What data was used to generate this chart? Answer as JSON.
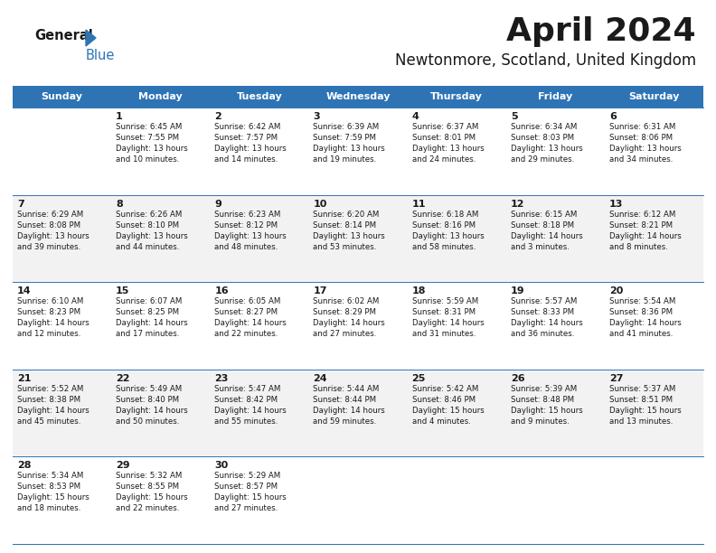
{
  "title": "April 2024",
  "subtitle": "Newtonmore, Scotland, United Kingdom",
  "header_color": "#2E74B5",
  "header_text_color": "#FFFFFF",
  "border_color": "#2E74B5",
  "text_color": "#1a1a1a",
  "days_of_week": [
    "Sunday",
    "Monday",
    "Tuesday",
    "Wednesday",
    "Thursday",
    "Friday",
    "Saturday"
  ],
  "logo_general_color": "#1a1a1a",
  "logo_blue_color": "#2E74B5",
  "calendar_data": [
    [
      {
        "day": "",
        "info": ""
      },
      {
        "day": "1",
        "info": "Sunrise: 6:45 AM\nSunset: 7:55 PM\nDaylight: 13 hours\nand 10 minutes."
      },
      {
        "day": "2",
        "info": "Sunrise: 6:42 AM\nSunset: 7:57 PM\nDaylight: 13 hours\nand 14 minutes."
      },
      {
        "day": "3",
        "info": "Sunrise: 6:39 AM\nSunset: 7:59 PM\nDaylight: 13 hours\nand 19 minutes."
      },
      {
        "day": "4",
        "info": "Sunrise: 6:37 AM\nSunset: 8:01 PM\nDaylight: 13 hours\nand 24 minutes."
      },
      {
        "day": "5",
        "info": "Sunrise: 6:34 AM\nSunset: 8:03 PM\nDaylight: 13 hours\nand 29 minutes."
      },
      {
        "day": "6",
        "info": "Sunrise: 6:31 AM\nSunset: 8:06 PM\nDaylight: 13 hours\nand 34 minutes."
      }
    ],
    [
      {
        "day": "7",
        "info": "Sunrise: 6:29 AM\nSunset: 8:08 PM\nDaylight: 13 hours\nand 39 minutes."
      },
      {
        "day": "8",
        "info": "Sunrise: 6:26 AM\nSunset: 8:10 PM\nDaylight: 13 hours\nand 44 minutes."
      },
      {
        "day": "9",
        "info": "Sunrise: 6:23 AM\nSunset: 8:12 PM\nDaylight: 13 hours\nand 48 minutes."
      },
      {
        "day": "10",
        "info": "Sunrise: 6:20 AM\nSunset: 8:14 PM\nDaylight: 13 hours\nand 53 minutes."
      },
      {
        "day": "11",
        "info": "Sunrise: 6:18 AM\nSunset: 8:16 PM\nDaylight: 13 hours\nand 58 minutes."
      },
      {
        "day": "12",
        "info": "Sunrise: 6:15 AM\nSunset: 8:18 PM\nDaylight: 14 hours\nand 3 minutes."
      },
      {
        "day": "13",
        "info": "Sunrise: 6:12 AM\nSunset: 8:21 PM\nDaylight: 14 hours\nand 8 minutes."
      }
    ],
    [
      {
        "day": "14",
        "info": "Sunrise: 6:10 AM\nSunset: 8:23 PM\nDaylight: 14 hours\nand 12 minutes."
      },
      {
        "day": "15",
        "info": "Sunrise: 6:07 AM\nSunset: 8:25 PM\nDaylight: 14 hours\nand 17 minutes."
      },
      {
        "day": "16",
        "info": "Sunrise: 6:05 AM\nSunset: 8:27 PM\nDaylight: 14 hours\nand 22 minutes."
      },
      {
        "day": "17",
        "info": "Sunrise: 6:02 AM\nSunset: 8:29 PM\nDaylight: 14 hours\nand 27 minutes."
      },
      {
        "day": "18",
        "info": "Sunrise: 5:59 AM\nSunset: 8:31 PM\nDaylight: 14 hours\nand 31 minutes."
      },
      {
        "day": "19",
        "info": "Sunrise: 5:57 AM\nSunset: 8:33 PM\nDaylight: 14 hours\nand 36 minutes."
      },
      {
        "day": "20",
        "info": "Sunrise: 5:54 AM\nSunset: 8:36 PM\nDaylight: 14 hours\nand 41 minutes."
      }
    ],
    [
      {
        "day": "21",
        "info": "Sunrise: 5:52 AM\nSunset: 8:38 PM\nDaylight: 14 hours\nand 45 minutes."
      },
      {
        "day": "22",
        "info": "Sunrise: 5:49 AM\nSunset: 8:40 PM\nDaylight: 14 hours\nand 50 minutes."
      },
      {
        "day": "23",
        "info": "Sunrise: 5:47 AM\nSunset: 8:42 PM\nDaylight: 14 hours\nand 55 minutes."
      },
      {
        "day": "24",
        "info": "Sunrise: 5:44 AM\nSunset: 8:44 PM\nDaylight: 14 hours\nand 59 minutes."
      },
      {
        "day": "25",
        "info": "Sunrise: 5:42 AM\nSunset: 8:46 PM\nDaylight: 15 hours\nand 4 minutes."
      },
      {
        "day": "26",
        "info": "Sunrise: 5:39 AM\nSunset: 8:48 PM\nDaylight: 15 hours\nand 9 minutes."
      },
      {
        "day": "27",
        "info": "Sunrise: 5:37 AM\nSunset: 8:51 PM\nDaylight: 15 hours\nand 13 minutes."
      }
    ],
    [
      {
        "day": "28",
        "info": "Sunrise: 5:34 AM\nSunset: 8:53 PM\nDaylight: 15 hours\nand 18 minutes."
      },
      {
        "day": "29",
        "info": "Sunrise: 5:32 AM\nSunset: 8:55 PM\nDaylight: 15 hours\nand 22 minutes."
      },
      {
        "day": "30",
        "info": "Sunrise: 5:29 AM\nSunset: 8:57 PM\nDaylight: 15 hours\nand 27 minutes."
      },
      {
        "day": "",
        "info": ""
      },
      {
        "day": "",
        "info": ""
      },
      {
        "day": "",
        "info": ""
      },
      {
        "day": "",
        "info": ""
      }
    ]
  ]
}
